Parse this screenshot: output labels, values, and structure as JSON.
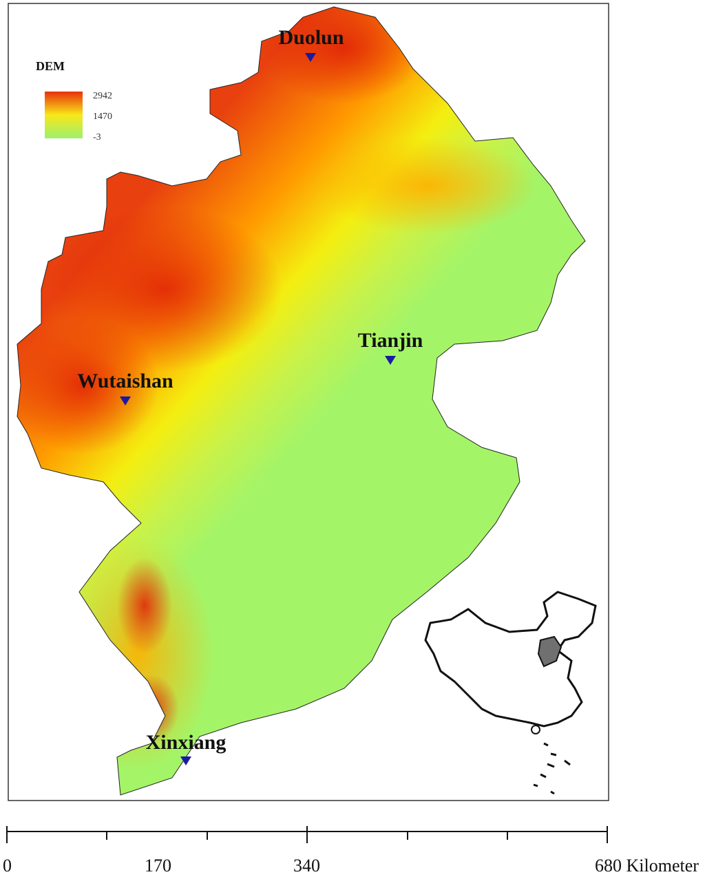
{
  "legend": {
    "title": "DEM",
    "labels": [
      "2942",
      "1470",
      "-3"
    ]
  },
  "stations": [
    "Duolun",
    "Tianjin",
    "Wutaishan",
    "Xinxiang"
  ],
  "scale_bar": {
    "labels": [
      "0",
      "170",
      "340",
      "680 Kilometer"
    ]
  }
}
